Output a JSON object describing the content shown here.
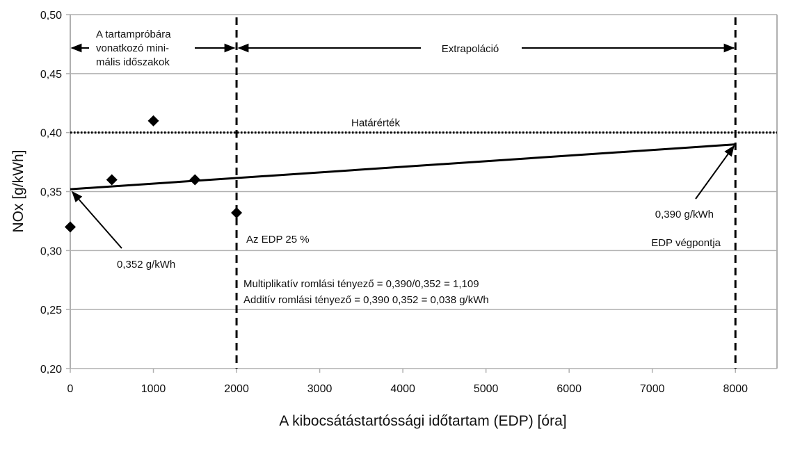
{
  "chart_data": {
    "type": "scatter",
    "xlabel": "A kibocsátástartóssági időtartam (EDP) [óra]",
    "ylabel": "NOx [g/kWh]",
    "xlim": [
      0,
      8500
    ],
    "ylim": [
      0.2,
      0.5
    ],
    "x_ticks": [
      0,
      1000,
      2000,
      3000,
      4000,
      5000,
      6000,
      7000,
      8000
    ],
    "x_tick_labels": [
      "0",
      "1000",
      "2000",
      "3000",
      "4000",
      "5000",
      "6000",
      "7000",
      "8000"
    ],
    "y_ticks": [
      0.2,
      0.25,
      0.3,
      0.35,
      0.4,
      0.45,
      0.5
    ],
    "y_tick_labels": [
      "0,20",
      "0,25",
      "0,30",
      "0,35",
      "0,40",
      "0,45",
      "0,50"
    ],
    "grid": "horizontal",
    "points": [
      {
        "x": 0,
        "y": 0.32
      },
      {
        "x": 500,
        "y": 0.36
      },
      {
        "x": 1000,
        "y": 0.41
      },
      {
        "x": 1500,
        "y": 0.36
      },
      {
        "x": 2000,
        "y": 0.332
      }
    ],
    "trend_line": {
      "x": [
        0,
        8000
      ],
      "y": [
        0.352,
        0.39
      ]
    },
    "limit_line": {
      "y": 0.4,
      "label": "Határérték"
    },
    "vertical_lines": [
      2000,
      8000
    ],
    "annotations": {
      "min_period": [
        "A  tartampróbára",
        "vonatkozó   mini-",
        "mális  időszakok"
      ],
      "extrapolation": "Extrapoláció",
      "start_value": "0,352 g/kWh",
      "end_value": "0,390 g/kWh",
      "edp_end": "EDP végpontja",
      "edp_25": "Az EDP 25 %",
      "multiplicative": "Multiplikatív  romlási  tényező  =  0,390/0,352  =  1,109",
      "additive": "Additív  romlási  tényező  =  0,390    0,352  =  0,038  g/kWh"
    },
    "colors": {
      "marks": "#000000",
      "grid": "#b0b0b0"
    }
  }
}
